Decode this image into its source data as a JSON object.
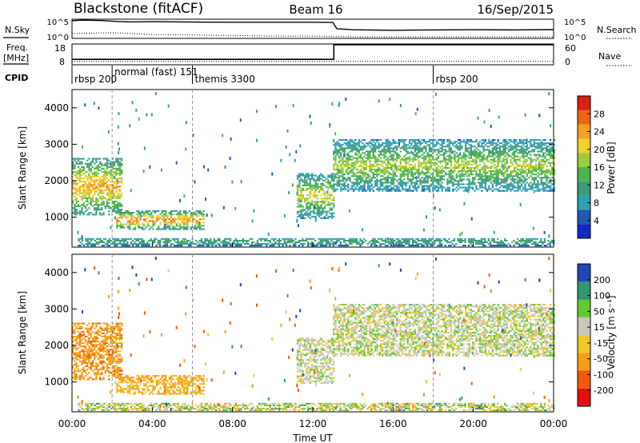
{
  "header": {
    "title": "Blackstone (fitACF)",
    "beam": "Beam 16",
    "date": "16/Sep/2015"
  },
  "noise_panel": {
    "left_label": "N.Sky",
    "right_label": "N.Search",
    "left_ticks": [
      "10^5",
      "10^0"
    ],
    "right_ticks": [
      "10^5",
      "10^0"
    ]
  },
  "freq_panel": {
    "left_label_1": "Freq.",
    "left_label_2": "[MHz]",
    "right_label": "Nave",
    "left_ticks": [
      "18",
      "8"
    ],
    "right_ticks": [
      "60",
      "0"
    ]
  },
  "cpid": {
    "label": "CPID",
    "modes": [
      {
        "name": "rbsp 200",
        "start_h": 0.0
      },
      {
        "name": "normal (fast) 151",
        "start_h": 2.0
      },
      {
        "name": "themis 3300",
        "start_h": 6.0
      },
      {
        "name": "rbsp 200",
        "start_h": 18.0
      }
    ]
  },
  "power_panel": {
    "ylabel": "Slant Range [km]",
    "colorbar_label": "Power [dB]",
    "colorbar_ticks": [
      "28",
      "24",
      "20",
      "16",
      "12",
      "8",
      "4"
    ]
  },
  "velocity_panel": {
    "ylabel": "Slant Range [km]",
    "colorbar_label": "Velocity [m s⁻¹]",
    "colorbar_ticks": [
      "200",
      "100",
      "50",
      "15",
      "-15",
      "-50",
      "-100",
      "-200"
    ]
  },
  "xaxis": {
    "label": "Time UT",
    "ticks": [
      "00:00",
      "04:00",
      "08:00",
      "12:00",
      "16:00",
      "20:00",
      "00:00"
    ]
  },
  "y_ticks": [
    "4000",
    "3000",
    "2000",
    "1000"
  ],
  "colors": {
    "power_scale": [
      "#1428c8",
      "#1e5ab4",
      "#32a0b4",
      "#3c9c78",
      "#50b450",
      "#9ccd3c",
      "#f0d228",
      "#f5a01e",
      "#f06414",
      "#dc1e14"
    ],
    "velocity_scale": [
      "#e60f0f",
      "#f05a0a",
      "#f5a014",
      "#f0c828",
      "#c8c8c0",
      "#64c832",
      "#32966e",
      "#1e46b4"
    ]
  },
  "chart_data": {
    "type": "heatmap",
    "x_range_hours": [
      0,
      24
    ],
    "y_range_km": [
      180,
      4500
    ],
    "y_ticks": [
      1000,
      2000,
      3000,
      4000
    ],
    "power_range_db": [
      0,
      30
    ],
    "velocity_range_ms": [
      -250,
      250
    ],
    "noise_sky_level": [
      [
        0,
        0.92
      ],
      [
        0.5,
        0.95
      ],
      [
        1.5,
        0.93
      ],
      [
        2.3,
        0.88
      ],
      [
        3,
        0.86
      ],
      [
        4,
        0.87
      ],
      [
        6,
        0.85
      ],
      [
        8,
        0.84
      ],
      [
        10,
        0.84
      ],
      [
        12,
        0.84
      ],
      [
        13,
        0.83
      ],
      [
        13.2,
        0.5
      ],
      [
        14,
        0.45
      ],
      [
        16,
        0.42
      ],
      [
        18,
        0.44
      ],
      [
        20,
        0.45
      ],
      [
        22,
        0.44
      ],
      [
        24,
        0.46
      ]
    ],
    "noise_search_level": [
      [
        0,
        0.25
      ],
      [
        2,
        0.3
      ],
      [
        4,
        0.2
      ],
      [
        6,
        0.18
      ],
      [
        8,
        0.15
      ],
      [
        10,
        0.12
      ],
      [
        12,
        0.12
      ],
      [
        13,
        0.1
      ],
      [
        14,
        0.08
      ],
      [
        18,
        0.08
      ],
      [
        24,
        0.08
      ]
    ],
    "frequency_mhz": [
      [
        0,
        10.6
      ],
      [
        13.05,
        10.6
      ],
      [
        13.05,
        17.6
      ],
      [
        24,
        17.6
      ]
    ],
    "nave": [
      [
        0,
        10
      ],
      [
        13.05,
        10
      ],
      [
        13.05,
        10
      ],
      [
        24,
        10
      ]
    ],
    "mode_boundaries_h": [
      2.0,
      6.0,
      18.0
    ],
    "power_regions": [
      {
        "t0": 0.0,
        "t1": 2.5,
        "r0": 1050,
        "r1": 2600,
        "peak_db": 26
      },
      {
        "t0": 2.2,
        "t1": 6.6,
        "r0": 650,
        "r1": 1150,
        "peak_db": 28
      },
      {
        "t0": 0.2,
        "t1": 24.0,
        "r0": 200,
        "r1": 420,
        "peak_db": 14
      },
      {
        "t0": 11.2,
        "t1": 13.0,
        "r0": 950,
        "r1": 2200,
        "peak_db": 22
      },
      {
        "t0": 13.0,
        "t1": 24.0,
        "r0": 1700,
        "r1": 3100,
        "peak_db": 20
      }
    ],
    "velocity_regions": [
      {
        "t0": 0.0,
        "t1": 2.5,
        "r0": 1050,
        "r1": 2600,
        "v": -80
      },
      {
        "t0": 2.2,
        "t1": 6.6,
        "r0": 650,
        "r1": 1150,
        "v": -60
      },
      {
        "t0": 11.2,
        "t1": 13.0,
        "r0": 950,
        "r1": 2200,
        "v": 0
      },
      {
        "t0": 13.0,
        "t1": 24.0,
        "r0": 1700,
        "r1": 3100,
        "v": 0
      }
    ]
  }
}
